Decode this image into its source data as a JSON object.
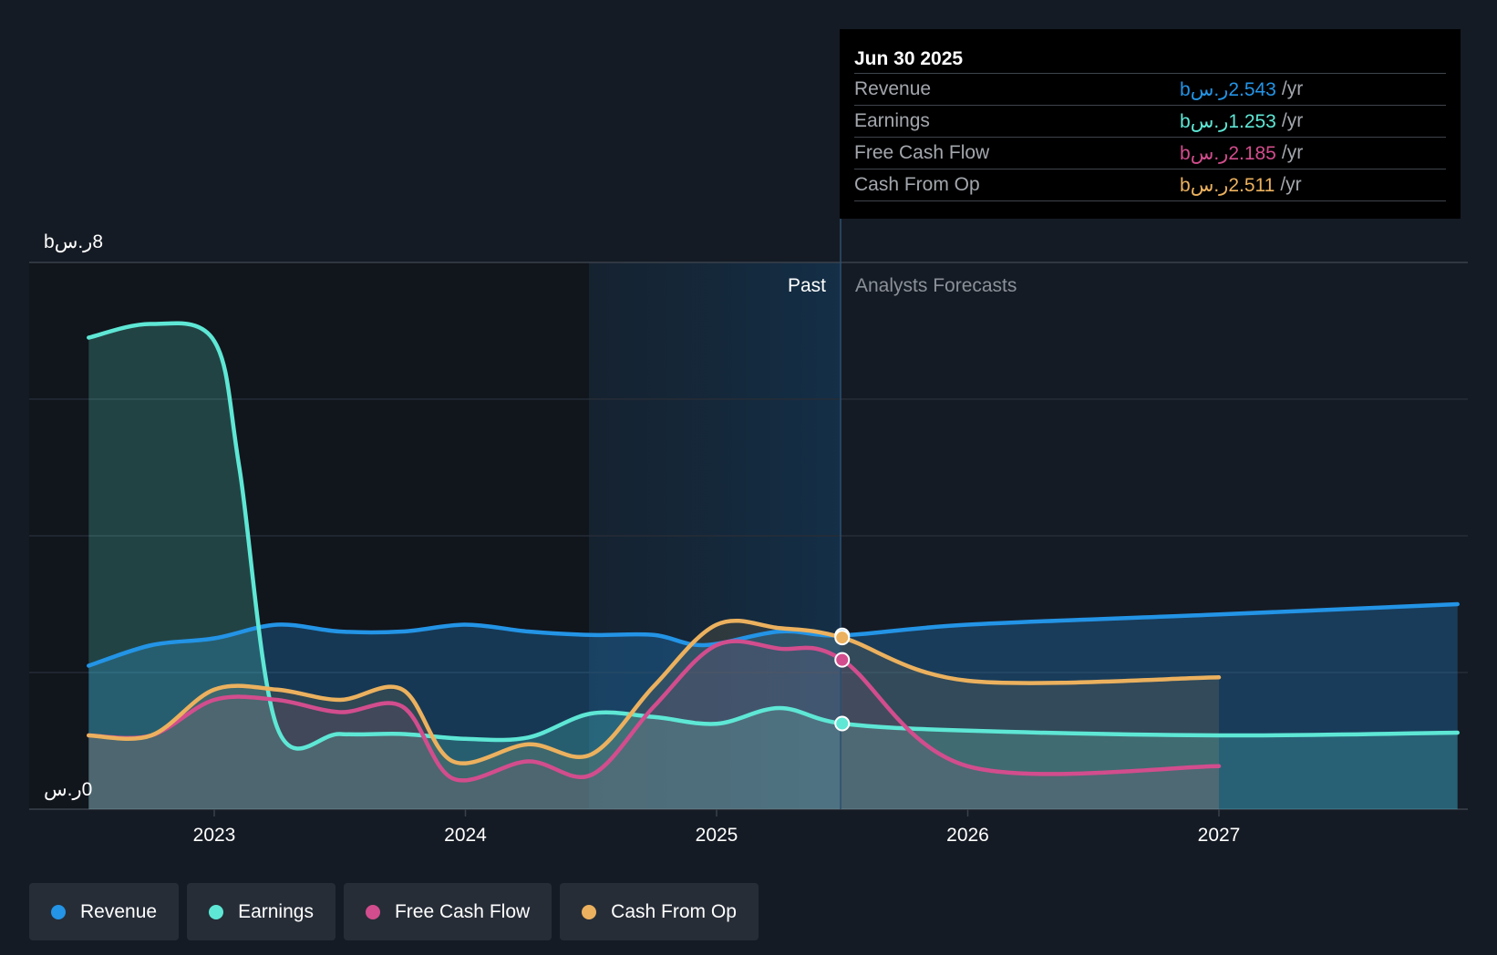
{
  "chart_data": {
    "type": "line",
    "y_axis": {
      "max_label": "8ر.سb",
      "min_label": "0ر.س",
      "ylim": [
        0,
        8
      ]
    },
    "x_ticks": [
      "2023",
      "2024",
      "2025",
      "2026",
      "2027"
    ],
    "regions": {
      "past_label": "Past",
      "forecast_label": "Analysts Forecasts"
    },
    "series": [
      {
        "name": "Revenue",
        "color": "#2394e6",
        "points": [
          [
            2022.5,
            2.1
          ],
          [
            2022.75,
            2.4
          ],
          [
            2023.0,
            2.5
          ],
          [
            2023.25,
            2.7
          ],
          [
            2023.5,
            2.6
          ],
          [
            2023.75,
            2.6
          ],
          [
            2024.0,
            2.7
          ],
          [
            2024.25,
            2.6
          ],
          [
            2024.5,
            2.55
          ],
          [
            2024.75,
            2.55
          ],
          [
            2024.95,
            2.4
          ],
          [
            2025.25,
            2.6
          ],
          [
            2025.5,
            2.543
          ],
          [
            2026.0,
            2.7
          ],
          [
            2027.0,
            2.85
          ],
          [
            2027.95,
            3.0
          ]
        ]
      },
      {
        "name": "Earnings",
        "color": "#5ee7d5",
        "points": [
          [
            2022.5,
            6.9
          ],
          [
            2022.75,
            7.1
          ],
          [
            2023.0,
            6.85
          ],
          [
            2023.1,
            5.0
          ],
          [
            2023.25,
            1.2
          ],
          [
            2023.5,
            1.1
          ],
          [
            2023.75,
            1.1
          ],
          [
            2024.0,
            1.03
          ],
          [
            2024.25,
            1.05
          ],
          [
            2024.5,
            1.4
          ],
          [
            2024.75,
            1.35
          ],
          [
            2025.0,
            1.25
          ],
          [
            2025.25,
            1.48
          ],
          [
            2025.5,
            1.253
          ],
          [
            2026.0,
            1.15
          ],
          [
            2027.0,
            1.08
          ],
          [
            2027.95,
            1.12
          ]
        ]
      },
      {
        "name": "Free Cash Flow",
        "color": "#d24d8d",
        "points": [
          [
            2022.5,
            1.08
          ],
          [
            2022.75,
            1.08
          ],
          [
            2023.0,
            1.6
          ],
          [
            2023.25,
            1.6
          ],
          [
            2023.5,
            1.42
          ],
          [
            2023.75,
            1.5
          ],
          [
            2023.95,
            0.45
          ],
          [
            2024.25,
            0.7
          ],
          [
            2024.5,
            0.5
          ],
          [
            2024.75,
            1.5
          ],
          [
            2025.0,
            2.4
          ],
          [
            2025.25,
            2.35
          ],
          [
            2025.5,
            2.185
          ],
          [
            2026.0,
            0.63
          ],
          [
            2027.0,
            0.63
          ]
        ]
      },
      {
        "name": "Cash From Op",
        "color": "#ecb15e",
        "points": [
          [
            2022.5,
            1.08
          ],
          [
            2022.75,
            1.08
          ],
          [
            2023.0,
            1.75
          ],
          [
            2023.25,
            1.75
          ],
          [
            2023.5,
            1.6
          ],
          [
            2023.75,
            1.75
          ],
          [
            2023.95,
            0.7
          ],
          [
            2024.25,
            0.95
          ],
          [
            2024.5,
            0.8
          ],
          [
            2024.75,
            1.8
          ],
          [
            2025.0,
            2.7
          ],
          [
            2025.25,
            2.65
          ],
          [
            2025.5,
            2.511
          ],
          [
            2026.0,
            1.88
          ],
          [
            2027.0,
            1.93
          ]
        ]
      }
    ]
  },
  "tooltip": {
    "date": "Jun 30 2025",
    "unit": "/yr",
    "rows": [
      {
        "label": "Revenue",
        "value": "2.543ر.سb",
        "color": "#2394e6"
      },
      {
        "label": "Earnings",
        "value": "1.253ر.سb",
        "color": "#5ee7d5"
      },
      {
        "label": "Free Cash Flow",
        "value": "2.185ر.سb",
        "color": "#d24d8d"
      },
      {
        "label": "Cash From Op",
        "value": "2.511ر.سb",
        "color": "#ecb15e"
      }
    ]
  },
  "legend": [
    {
      "label": "Revenue",
      "color": "#2394e6"
    },
    {
      "label": "Earnings",
      "color": "#5ee7d5"
    },
    {
      "label": "Free Cash Flow",
      "color": "#d24d8d"
    },
    {
      "label": "Cash From Op",
      "color": "#ecb15e"
    }
  ]
}
